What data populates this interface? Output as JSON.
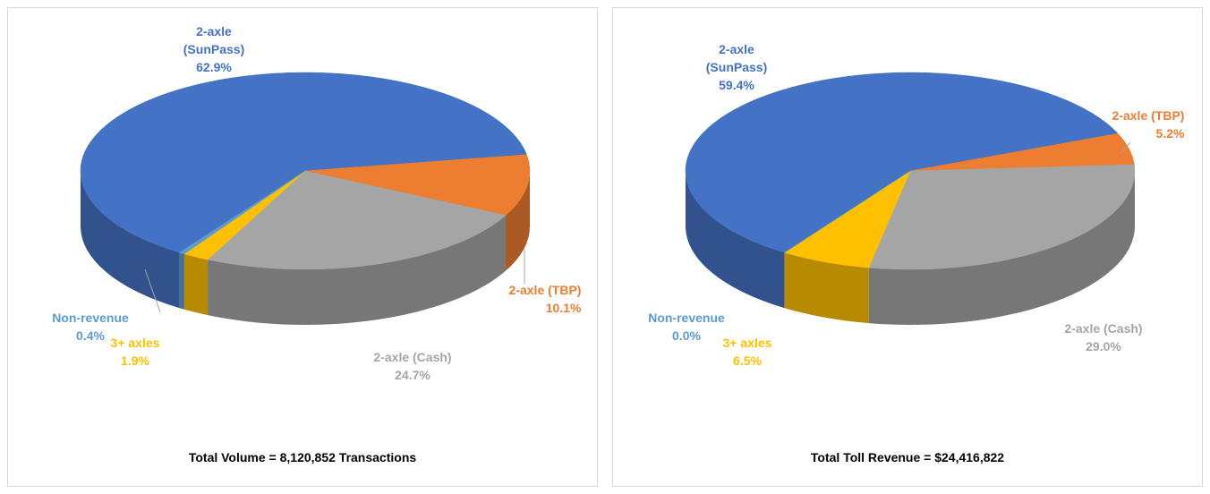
{
  "chart_data": [
    {
      "type": "pie",
      "title": "Total Volume = 8,120,852 Transactions",
      "categories": [
        "2-axle (SunPass)",
        "2-axle (TBP)",
        "2-axle (Cash)",
        "3+ axles",
        "Non-revenue"
      ],
      "values": [
        62.9,
        10.1,
        24.7,
        1.9,
        0.4
      ],
      "value_labels": [
        "62.9%",
        "10.1%",
        "24.7%",
        "1.9%",
        "0.4%"
      ],
      "colors": [
        "#4472c4",
        "#ed7d31",
        "#a5a5a5",
        "#ffc000",
        "#5b9bd5"
      ]
    },
    {
      "type": "pie",
      "title": "Total Toll Revenue = $24,416,822",
      "categories": [
        "2-axle (SunPass)",
        "2-axle (TBP)",
        "2-axle (Cash)",
        "3+ axles",
        "Non-revenue"
      ],
      "values": [
        59.4,
        5.2,
        29.0,
        6.5,
        0.0
      ],
      "value_labels": [
        "59.4%",
        "5.2%",
        "29.0%",
        "6.5%",
        "0.0%"
      ],
      "colors": [
        "#4472c4",
        "#ed7d31",
        "#a5a5a5",
        "#ffc000",
        "#5b9bd5"
      ]
    }
  ]
}
